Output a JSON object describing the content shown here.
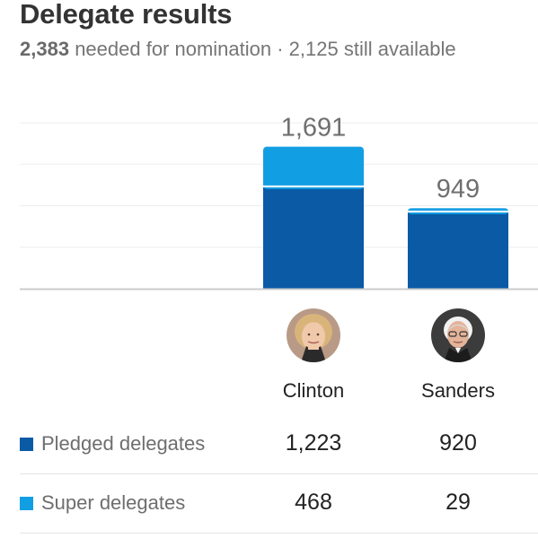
{
  "header": {
    "title": "Delegate results",
    "needed_number": "2,383",
    "needed_text": "needed for nomination · 2,125 still available"
  },
  "colors": {
    "pledged": "#0a5aa6",
    "super": "#129ee3",
    "gridline": "#eeeeee",
    "baseline": "#cccccc",
    "total_label": "#6f6f6f"
  },
  "chart_data": {
    "type": "bar",
    "stacked": true,
    "categories": [
      "Clinton",
      "Sanders"
    ],
    "series": [
      {
        "name": "Pledged delegates",
        "values": [
          1223,
          920
        ]
      },
      {
        "name": "Super delegates",
        "values": [
          468,
          29
        ]
      }
    ],
    "totals": [
      1691,
      949
    ],
    "total_labels": [
      "1,691",
      "949"
    ],
    "ylim": [
      0,
      2000
    ],
    "grid": true,
    "title": "Delegate results"
  },
  "candidates": [
    {
      "name": "Clinton",
      "avatar_icon": "clinton-portrait-icon"
    },
    {
      "name": "Sanders",
      "avatar_icon": "sanders-portrait-icon"
    }
  ],
  "table": {
    "rows": [
      {
        "label": "Pledged delegates",
        "values": [
          "1,223",
          "920"
        ]
      },
      {
        "label": "Super delegates",
        "values": [
          "468",
          "29"
        ]
      }
    ]
  }
}
